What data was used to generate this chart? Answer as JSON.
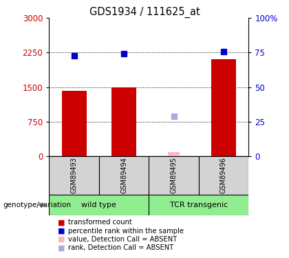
{
  "title": "GDS1934 / 111625_at",
  "samples": [
    "GSM89493",
    "GSM89494",
    "GSM89495",
    "GSM89496"
  ],
  "bar_values": [
    1420,
    1490,
    null,
    2100
  ],
  "bar_absent_values": [
    null,
    null,
    95,
    null
  ],
  "rank_values": [
    2175,
    2230,
    null,
    2270
  ],
  "rank_absent_values": [
    null,
    null,
    870,
    null
  ],
  "bar_color": "#CC0000",
  "bar_absent_color": "#FFB6C1",
  "rank_color": "#0000CC",
  "rank_absent_color": "#AAAADD",
  "ylim_left": [
    0,
    3000
  ],
  "ylim_right": [
    0,
    100
  ],
  "yticks_left": [
    0,
    750,
    1500,
    2250,
    3000
  ],
  "yticks_right": [
    0,
    25,
    50,
    75,
    100
  ],
  "ytick_labels_right": [
    "0",
    "25",
    "50",
    "75",
    "100%"
  ],
  "gridlines": [
    750,
    1500,
    2250
  ],
  "bar_width": 0.5,
  "legend_items": [
    {
      "color": "#CC0000",
      "label": "transformed count"
    },
    {
      "color": "#0000CC",
      "label": "percentile rank within the sample"
    },
    {
      "color": "#FFB6C1",
      "label": "value, Detection Call = ABSENT"
    },
    {
      "color": "#AAAADD",
      "label": "rank, Detection Call = ABSENT"
    }
  ],
  "axis_label_color": "#CC0000",
  "ylabel_right_color": "#0000CC",
  "genotype_label": "genotype/variation"
}
